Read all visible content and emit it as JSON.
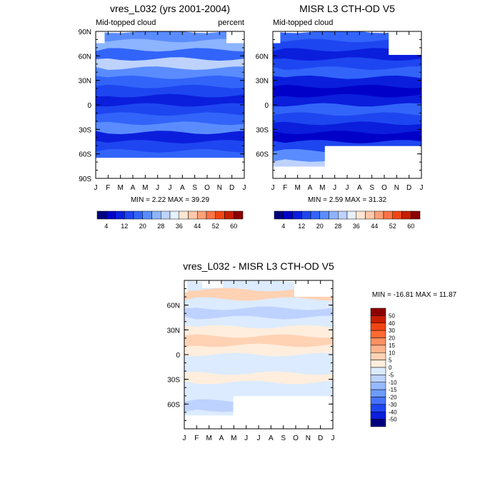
{
  "chart_data": [
    {
      "type": "heatmap",
      "title": "vres_L032 (yrs 2001-2004)",
      "subtitle_left": "Mid-topped cloud",
      "subtitle_right": "percent",
      "x_ticks": [
        "J",
        "F",
        "M",
        "A",
        "M",
        "J",
        "J",
        "A",
        "S",
        "O",
        "N",
        "D",
        "J"
      ],
      "y_ticks": [
        "90N",
        "60N",
        "30N",
        "0",
        "30S",
        "60S",
        "90S"
      ],
      "stats": "MIN =  2.22 MAX =  39.29",
      "colorbar_labels": [
        "4",
        "12",
        "20",
        "28",
        "36",
        "44",
        "52",
        "60"
      ],
      "colorbar_colors": [
        "#00007f",
        "#0000c8",
        "#0a1edc",
        "#1e46f0",
        "#3264fa",
        "#5a8cff",
        "#8cb4ff",
        "#bed2ff",
        "#e6f0ff",
        "#ffe6d2",
        "#ffc8aa",
        "#ffa078",
        "#ff7346",
        "#f04614",
        "#c81e00",
        "#8c0000"
      ],
      "band_colors": [
        "#5a8cff",
        "#8cb4ff",
        "#3264fa",
        "#bed2ff",
        "#5a8cff",
        "#3264fa",
        "#1e46f0",
        "#0a1edc",
        "#1e46f0",
        "#3264fa",
        "#5a8cff",
        "#0a1edc",
        "#1e46f0",
        "#3264fa",
        "#5a8cff",
        "#8cb4ff"
      ]
    },
    {
      "type": "heatmap",
      "title": "MISR L3 CTH-OD V5",
      "subtitle_left": "Mid-topped cloud",
      "x_ticks": [
        "J",
        "F",
        "M",
        "A",
        "M",
        "J",
        "J",
        "A",
        "S",
        "O",
        "N",
        "D",
        "J"
      ],
      "y_ticks": [
        "60N",
        "30N",
        "0",
        "30S",
        "60S"
      ],
      "stats": "MIN =  2.59 MAX =  31.32",
      "colorbar_labels": [
        "4",
        "12",
        "20",
        "28",
        "36",
        "44",
        "52",
        "60"
      ],
      "colorbar_colors": [
        "#00007f",
        "#0000c8",
        "#0a1edc",
        "#1e46f0",
        "#3264fa",
        "#5a8cff",
        "#8cb4ff",
        "#bed2ff",
        "#e6f0ff",
        "#ffe6d2",
        "#ffc8aa",
        "#ffa078",
        "#ff7346",
        "#f04614",
        "#c81e00",
        "#8c0000"
      ],
      "band_colors": [
        "#3264fa",
        "#1e46f0",
        "#0a1edc",
        "#1e46f0",
        "#3264fa",
        "#0a1edc",
        "#0000c8",
        "#0a1edc",
        "#3264fa",
        "#1e46f0",
        "#0a1edc",
        "#0000c8",
        "#1e46f0",
        "#5a8cff",
        "#bed2ff",
        "#8cb4ff"
      ]
    },
    {
      "type": "heatmap",
      "title": "vres_L032 - MISR L3 CTH-OD V5",
      "x_ticks": [
        "J",
        "F",
        "M",
        "A",
        "M",
        "J",
        "J",
        "A",
        "S",
        "O",
        "N",
        "D",
        "J"
      ],
      "y_ticks": [
        "60N",
        "30N",
        "0",
        "30S",
        "60S"
      ],
      "stats": "MIN = -16.81 MAX =  11.87",
      "colorbar_labels": [
        "50",
        "40",
        "30",
        "20",
        "15",
        "10",
        "5",
        "0",
        "-5",
        "-10",
        "-15",
        "-20",
        "-30",
        "-40",
        "-50"
      ],
      "colorbar_colors": [
        "#8c0000",
        "#c81e00",
        "#f04614",
        "#ff6a32",
        "#ff9060",
        "#ffb48c",
        "#ffd2b4",
        "#ffeedd",
        "#dcebff",
        "#bed2ff",
        "#96b9ff",
        "#6e9bff",
        "#4673fa",
        "#1e46f0",
        "#0a1edc",
        "#00007f"
      ],
      "band_colors": [
        "#dcebff",
        "#ffd2b4",
        "#dcebff",
        "#bed2ff",
        "#dcebff",
        "#ffeedd",
        "#ffd2b4",
        "#ffeedd",
        "#dcebff",
        "#dcebff",
        "#ffeedd",
        "#dcebff",
        "#dcebff",
        "#bed2ff",
        "#dcebff",
        "#dcebff"
      ]
    }
  ]
}
